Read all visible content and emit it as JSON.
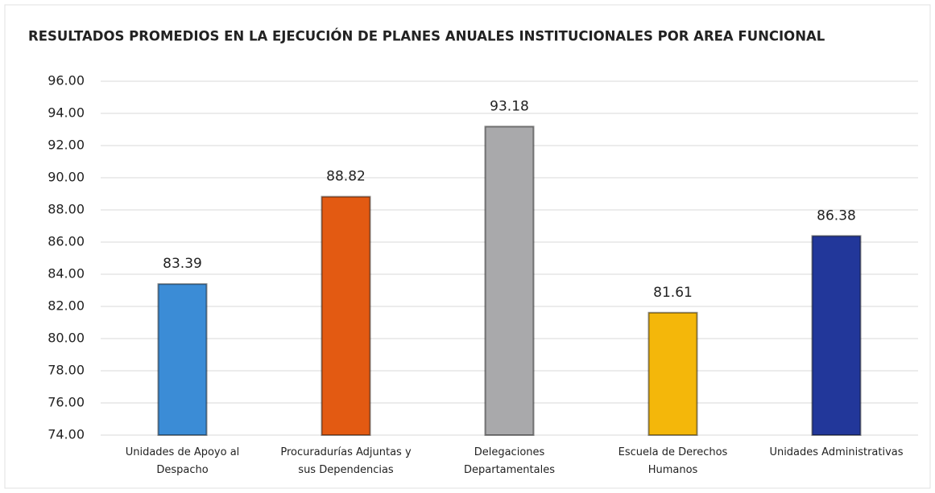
{
  "chart_data": {
    "type": "bar",
    "title": "RESULTADOS PROMEDIOS EN LA EJECUCIÓN DE PLANES ANUALES INSTITUCIONALES POR AREA FUNCIONAL",
    "categories": [
      "Unidades de Apoyo al Despacho",
      "Procuradurías Adjuntas y sus Dependencias",
      "Delegaciones Departamentales",
      "Escuela de Derechos Humanos",
      "Unidades Administrativas"
    ],
    "values": [
      83.39,
      88.82,
      93.18,
      81.61,
      86.38
    ],
    "colors": [
      "#3b8cd6",
      "#e35a12",
      "#a9a9ab",
      "#f4b70a",
      "#22379a"
    ],
    "ylim": [
      74,
      96
    ],
    "yticks": [
      {
        "value": 74,
        "label": "74.00"
      },
      {
        "value": 76,
        "label": "76.00"
      },
      {
        "value": 78,
        "label": "78.00"
      },
      {
        "value": 80,
        "label": "80.00"
      },
      {
        "value": 82,
        "label": "82.00"
      },
      {
        "value": 84,
        "label": "84.00"
      },
      {
        "value": 86,
        "label": "86.00"
      },
      {
        "value": 88,
        "label": "88.00"
      },
      {
        "value": 90,
        "label": "90.00"
      },
      {
        "value": 92,
        "label": "92.00"
      },
      {
        "value": 94,
        "label": "94.00"
      },
      {
        "value": 96,
        "label": "96.00"
      }
    ],
    "grid": true
  }
}
